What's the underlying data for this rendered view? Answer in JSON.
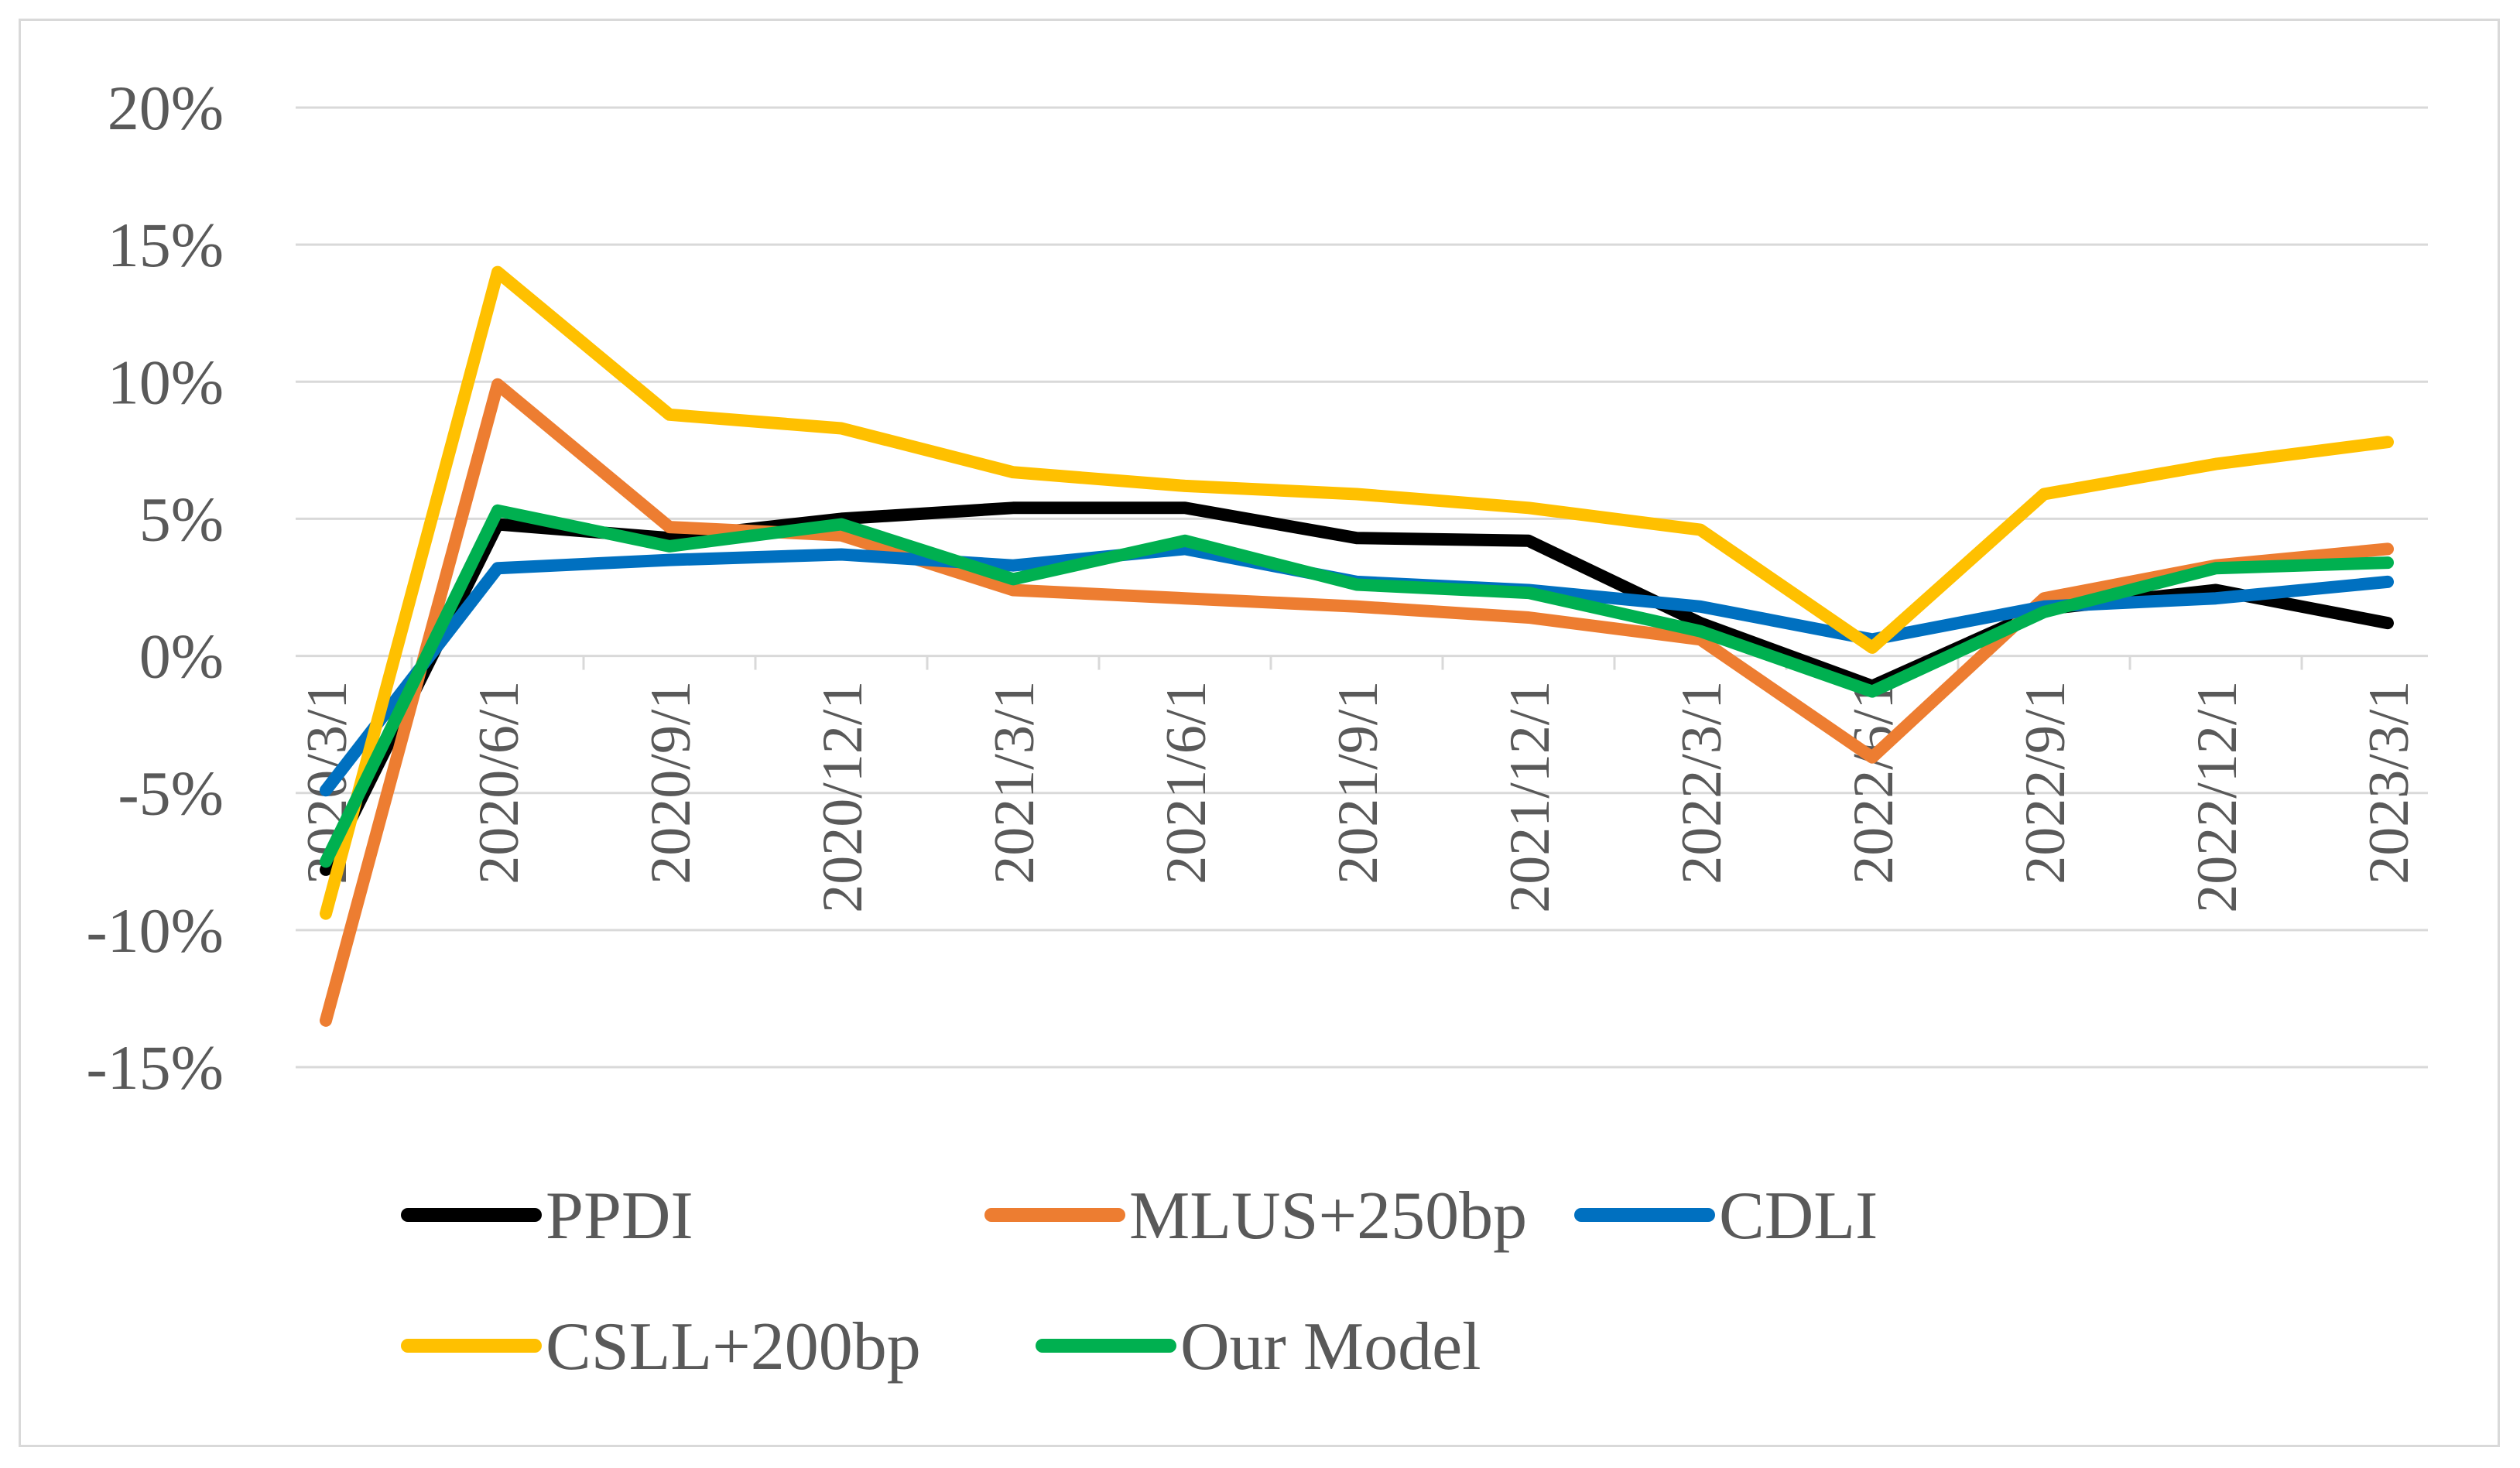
{
  "chart_data": {
    "type": "line",
    "title": "",
    "xlabel": "",
    "ylabel": "",
    "categories": [
      "2020/3/1",
      "2020/6/1",
      "2020/9/1",
      "2020/12/1",
      "2021/3/1",
      "2021/6/1",
      "2021/9/1",
      "2021/12/1",
      "2022/3/1",
      "2022/6/1",
      "2022/9/1",
      "2022/12/1",
      "2023/3/1"
    ],
    "y_ticks": [
      "20%",
      "15%",
      "10%",
      "5%",
      "0%",
      "-5%",
      "-10%",
      "-15%"
    ],
    "y_tick_values": [
      20,
      15,
      10,
      5,
      0,
      -5,
      -10,
      -15
    ],
    "ylim": [
      -15,
      20
    ],
    "grid": true,
    "legend_position": "bottom",
    "series": [
      {
        "name": "PPDI",
        "color": "#000000",
        "values": [
          -7.8,
          4.8,
          4.3,
          5.0,
          5.4,
          5.4,
          4.3,
          4.2,
          1.2,
          -1.1,
          1.7,
          2.4,
          1.2
        ]
      },
      {
        "name": "MLUS+250bp",
        "color": "#ED7D31",
        "values": [
          -13.3,
          9.9,
          4.7,
          4.4,
          2.4,
          2.1,
          1.8,
          1.4,
          0.6,
          -3.7,
          2.1,
          3.3,
          3.9
        ]
      },
      {
        "name": "CDLI",
        "color": "#0070C0",
        "values": [
          -4.9,
          3.2,
          3.5,
          3.7,
          3.3,
          3.9,
          2.7,
          2.4,
          1.8,
          0.6,
          1.8,
          2.1,
          2.7
        ]
      },
      {
        "name": "CSLL+200bp",
        "color": "#FFC000",
        "values": [
          -9.4,
          14.0,
          8.8,
          8.3,
          6.7,
          6.2,
          5.9,
          5.4,
          4.6,
          0.3,
          5.9,
          7.0,
          7.8
        ]
      },
      {
        "name": "Our Model",
        "color": "#00B050",
        "values": [
          -7.5,
          5.3,
          4.0,
          4.8,
          2.8,
          4.2,
          2.6,
          2.3,
          0.9,
          -1.3,
          1.6,
          3.2,
          3.4
        ]
      }
    ]
  }
}
